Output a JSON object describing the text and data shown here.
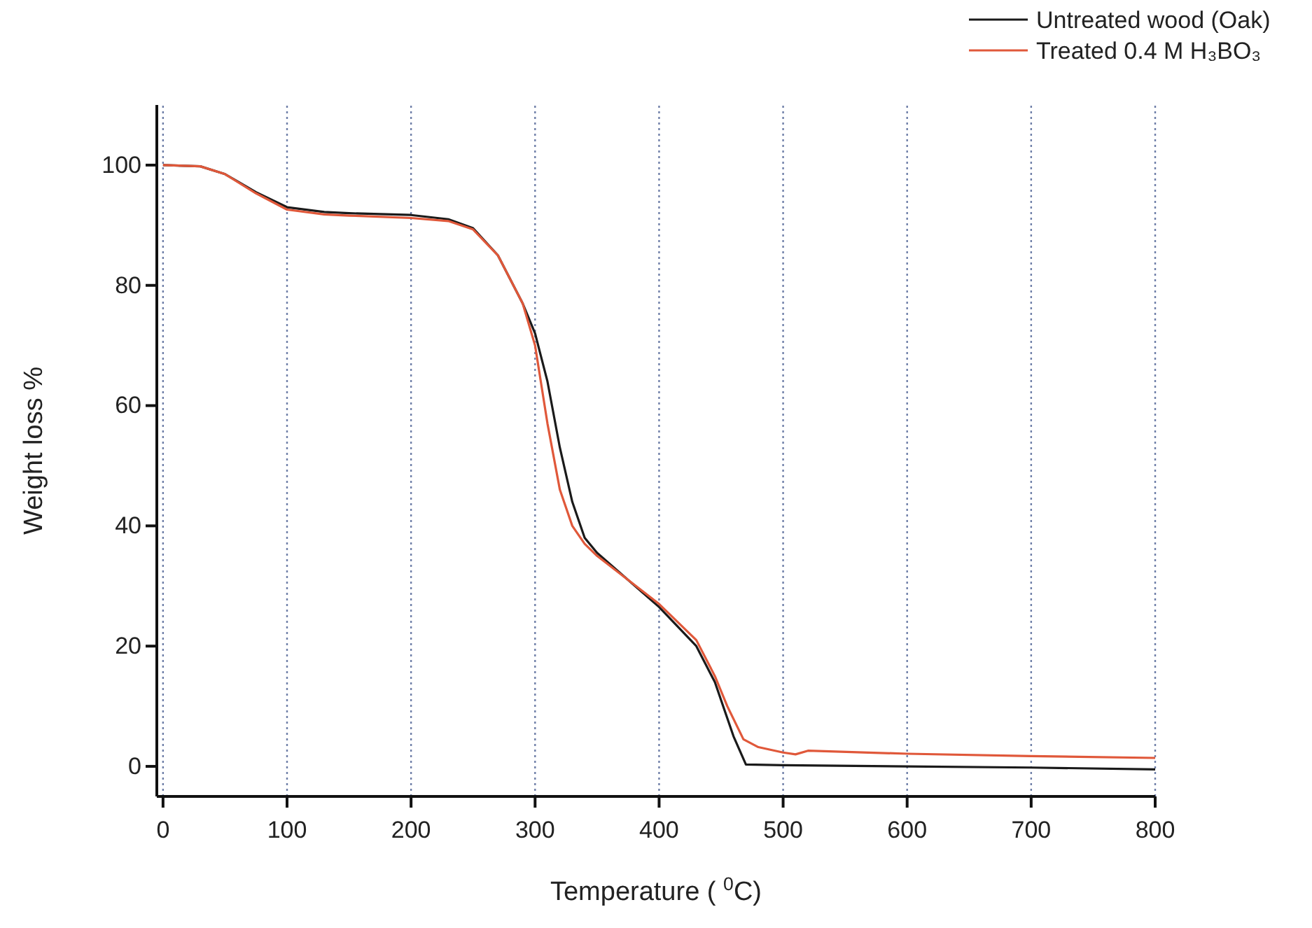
{
  "chart_data": {
    "type": "line",
    "xlabel": "Temperature ( $^{0}$C)",
    "ylabel": "Weight loss %",
    "xlim": [
      -5,
      800
    ],
    "ylim": [
      -5,
      110
    ],
    "xticks": [
      0,
      100,
      200,
      300,
      400,
      500,
      600,
      700,
      800
    ],
    "yticks": [
      0,
      20,
      40,
      60,
      80,
      100
    ],
    "grid": "x",
    "legend": "top right",
    "line_style": "solid",
    "marker": "none",
    "series": [
      {
        "name": "Untreated wood (Oak)",
        "color": "#1a1a1a",
        "x": [
          0,
          30,
          50,
          75,
          100,
          130,
          150,
          200,
          230,
          250,
          270,
          290,
          300,
          310,
          320,
          330,
          340,
          350,
          400,
          430,
          445,
          460,
          470,
          500,
          600,
          700,
          800
        ],
        "values": [
          100,
          99.8,
          98.5,
          95.5,
          93,
          92.2,
          92,
          91.7,
          91,
          89.5,
          85,
          77,
          72,
          64,
          53,
          44,
          38,
          35.5,
          26.5,
          20,
          14,
          5,
          0.3,
          0.2,
          0,
          -0.2,
          -0.5
        ]
      },
      {
        "name": "Treated 0.4 M H₃BO₃",
        "color": "#e0583a",
        "x": [
          0,
          30,
          50,
          75,
          100,
          130,
          150,
          200,
          230,
          250,
          270,
          290,
          300,
          310,
          320,
          330,
          340,
          350,
          400,
          430,
          445,
          455,
          468,
          480,
          500,
          510,
          520,
          600,
          700,
          800
        ],
        "values": [
          100,
          99.8,
          98.5,
          95.3,
          92.6,
          91.8,
          91.6,
          91.2,
          90.7,
          89.3,
          85,
          77,
          70,
          57,
          46,
          40,
          37,
          35,
          27,
          21,
          15,
          10,
          4.5,
          3.2,
          2.3,
          2,
          2.6,
          2.1,
          1.7,
          1.4
        ]
      }
    ]
  }
}
